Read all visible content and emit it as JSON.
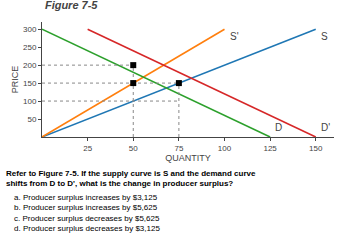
{
  "chart_data": {
    "type": "line",
    "title": "Figure 7-5",
    "x_label": "QUANTITY",
    "y_label": "PRICE",
    "xlim": [
      0,
      160
    ],
    "ylim": [
      0,
      320
    ],
    "xticks": [
      25,
      50,
      75,
      100,
      125,
      150
    ],
    "yticks": [
      50,
      100,
      150,
      200,
      250,
      300
    ],
    "grid": false,
    "series": [
      {
        "name": "S",
        "x": [
          0,
          150
        ],
        "values": [
          0,
          300
        ]
      },
      {
        "name": "S'",
        "x": [
          0,
          100
        ],
        "values": [
          0,
          300
        ]
      },
      {
        "name": "D",
        "x": [
          0,
          125
        ],
        "values": [
          300,
          0
        ]
      },
      {
        "name": "D'",
        "x": [
          25,
          150
        ],
        "values": [
          300,
          0
        ]
      },
      {
        "x": [
          50,
          50
        ],
        "values": [
          0,
          200
        ],
        "line_style": "dotted",
        "color": "#888888"
      },
      {
        "x": [
          0,
          50
        ],
        "values": [
          200,
          200
        ],
        "line_style": "dotted",
        "color": "#888888"
      },
      {
        "x": [
          0,
          75
        ],
        "values": [
          150,
          150
        ],
        "line_style": "dotted",
        "color": "#888888"
      },
      {
        "x": [
          75,
          75
        ],
        "values": [
          0,
          150
        ],
        "line_style": "dotted",
        "color": "#888888"
      },
      {
        "x": [
          0,
          75
        ],
        "values": [
          100,
          100
        ],
        "line_style": "dotted",
        "color": "#888888"
      },
      {
        "type": "scatter",
        "marker": "square",
        "color": "#000000",
        "x": [
          50,
          50,
          75
        ],
        "values": [
          200,
          150,
          150
        ]
      }
    ],
    "annotations": [
      "Refer to Figure 7-5. If the supply curve is S and the demand curve shifts from D to D', what is the change in producer surplus?",
      "a. Producer surplus increases by $3,125",
      "b. Producer surplus increases by $5,625",
      "c. Producer surplus decreases by $5,625",
      "d. Producer surplus decreases by $3,125"
    ]
  }
}
